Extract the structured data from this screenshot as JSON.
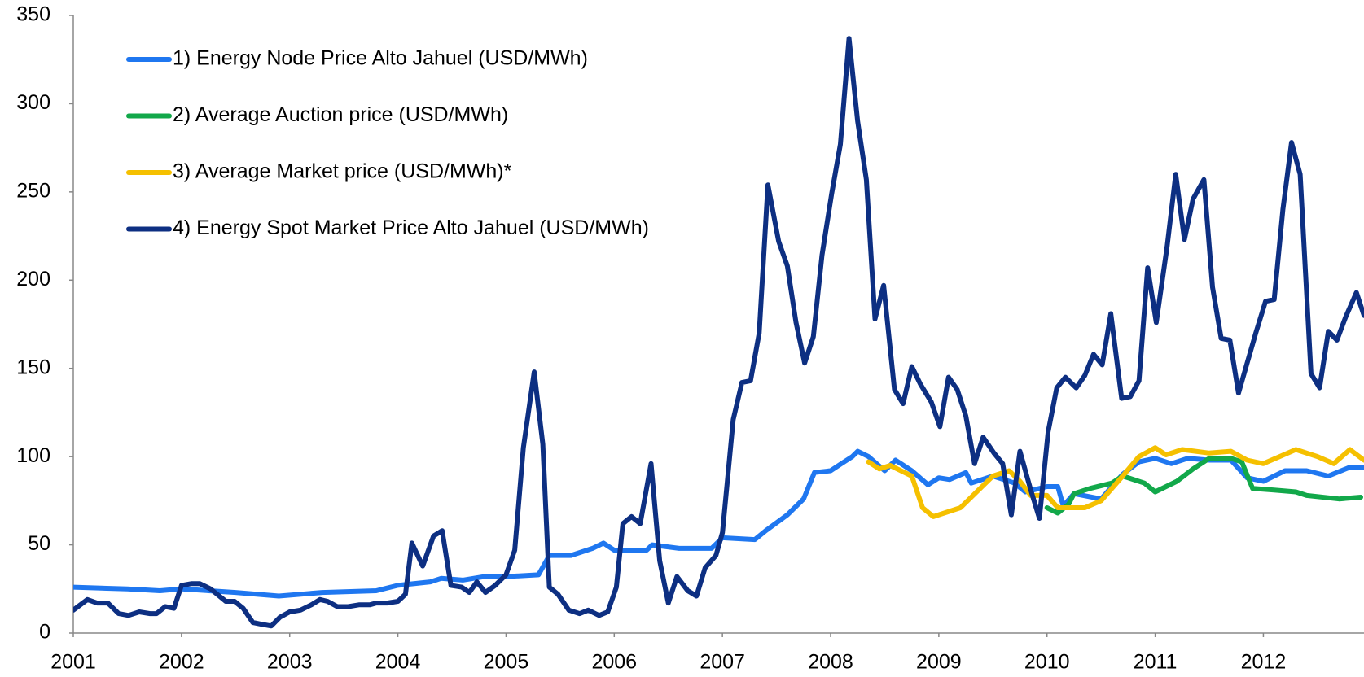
{
  "chart_data": {
    "type": "line",
    "xlim": [
      2001,
      2012.93
    ],
    "ylim": [
      0,
      350
    ],
    "xticks": [
      2001,
      2002,
      2003,
      2004,
      2005,
      2006,
      2007,
      2008,
      2009,
      2010,
      2011,
      2012
    ],
    "yticks": [
      0,
      50,
      100,
      150,
      200,
      250,
      300,
      350
    ],
    "legend": "upper left",
    "series": [
      {
        "name": "1) Energy Node Price Alto Jahuel (USD/MWh)",
        "color": "#1f77f0",
        "x": [
          2001,
          2001.5,
          2001.8,
          2002,
          2002.5,
          2002.9,
          2003.3,
          2003.8,
          2004,
          2004.3,
          2004.4,
          2004.6,
          2004.8,
          2005,
          2005.3,
          2005.4,
          2005.6,
          2005.8,
          2005.9,
          2006,
          2006.3,
          2006.35,
          2006.6,
          2006.9,
          2007,
          2007.3,
          2007.4,
          2007.6,
          2007.75,
          2007.85,
          2008,
          2008.1,
          2008.2,
          2008.25,
          2008.35,
          2008.5,
          2008.6,
          2008.75,
          2008.9,
          2009,
          2009.1,
          2009.25,
          2009.3,
          2009.5,
          2009.7,
          2009.8,
          2010,
          2010.1,
          2010.15,
          2010.25,
          2010.5,
          2010.7,
          2010.85,
          2011,
          2011.15,
          2011.3,
          2011.5,
          2011.7,
          2011.85,
          2012,
          2012.2,
          2012.4,
          2012.6,
          2012.8,
          2012.93
        ],
        "values": [
          26,
          25,
          24,
          25,
          23,
          21,
          23,
          24,
          27,
          29,
          31,
          30,
          32,
          32,
          33,
          44,
          44,
          48,
          51,
          47,
          47,
          50,
          48,
          48,
          54,
          53,
          58,
          67,
          76,
          91,
          92,
          96,
          100,
          103,
          100,
          92,
          98,
          92,
          84,
          88,
          87,
          91,
          85,
          89,
          85,
          80,
          83,
          83,
          72,
          79,
          76,
          90,
          97,
          99,
          96,
          99,
          98,
          98,
          88,
          86,
          92,
          92,
          89,
          94,
          94
        ]
      },
      {
        "name": "2) Average Auction price (USD/MWh)",
        "color": "#12a84a",
        "x": [
          2010,
          2010.1,
          2010.2,
          2010.25,
          2010.4,
          2010.6,
          2010.7,
          2010.9,
          2011,
          2011.2,
          2011.35,
          2011.5,
          2011.7,
          2011.8,
          2011.9,
          2012.1,
          2012.3,
          2012.4,
          2012.7,
          2012.9
        ],
        "values": [
          71,
          68,
          73,
          79,
          82,
          85,
          89,
          85,
          80,
          86,
          93,
          99,
          99,
          97,
          82,
          81,
          80,
          78,
          76,
          77
        ]
      },
      {
        "name": "3) Average Market price (USD/MWh)*",
        "color": "#f5c000",
        "x": [
          2008.35,
          2008.45,
          2008.55,
          2008.75,
          2008.85,
          2008.95,
          2009.2,
          2009.4,
          2009.5,
          2009.65,
          2009.75,
          2009.85,
          2010,
          2010.1,
          2010.35,
          2010.5,
          2010.7,
          2010.85,
          2011,
          2011.1,
          2011.25,
          2011.5,
          2011.7,
          2011.85,
          2012,
          2012.15,
          2012.3,
          2012.5,
          2012.65,
          2012.8,
          2012.93
        ],
        "values": [
          97,
          93,
          95,
          89,
          71,
          66,
          71,
          83,
          89,
          92,
          86,
          78,
          78,
          71,
          71,
          75,
          89,
          100,
          105,
          101,
          104,
          102,
          103,
          98,
          96,
          100,
          104,
          100,
          96,
          104,
          98
        ]
      },
      {
        "name": "4) Energy Spot Market Price Alto Jahuel (USD/MWh)",
        "color": "#0d2f82",
        "x": [
          2001,
          2001.13,
          2001.22,
          2001.32,
          2001.42,
          2001.51,
          2001.61,
          2001.71,
          2001.77,
          2001.85,
          2001.93,
          2002,
          2002.09,
          2002.17,
          2002.27,
          2002.33,
          2002.41,
          2002.49,
          2002.57,
          2002.66,
          2002.74,
          2002.83,
          2002.91,
          2003,
          2003.1,
          2003.2,
          2003.28,
          2003.35,
          2003.44,
          2003.54,
          2003.64,
          2003.74,
          2003.8,
          2003.9,
          2004,
          2004.07,
          2004.13,
          2004.23,
          2004.33,
          2004.41,
          2004.49,
          2004.59,
          2004.66,
          2004.73,
          2004.81,
          2004.9,
          2005,
          2005.08,
          2005.16,
          2005.26,
          2005.34,
          2005.4,
          2005.48,
          2005.58,
          2005.68,
          2005.76,
          2005.86,
          2005.94,
          2006.02,
          2006.08,
          2006.16,
          2006.24,
          2006.34,
          2006.42,
          2006.5,
          2006.58,
          2006.68,
          2006.76,
          2006.84,
          2006.94,
          2007,
          2007.1,
          2007.18,
          2007.26,
          2007.34,
          2007.42,
          2007.52,
          2007.6,
          2007.68,
          2007.76,
          2007.84,
          2007.92,
          2008.01,
          2008.09,
          2008.17,
          2008.25,
          2008.33,
          2008.41,
          2008.49,
          2008.59,
          2008.67,
          2008.75,
          2008.83,
          2008.93,
          2009.01,
          2009.09,
          2009.17,
          2009.25,
          2009.33,
          2009.41,
          2009.51,
          2009.59,
          2009.67,
          2009.75,
          2009.85,
          2009.93,
          2010.01,
          2010.09,
          2010.17,
          2010.27,
          2010.35,
          2010.43,
          2010.51,
          2010.59,
          2010.69,
          2010.77,
          2010.85,
          2010.93,
          2011.01,
          2011.11,
          2011.19,
          2011.27,
          2011.35,
          2011.45,
          2011.53,
          2011.61,
          2011.69,
          2011.77,
          2011.85,
          2011.93,
          2012.02,
          2012.1,
          2012.18,
          2012.26,
          2012.34,
          2012.44,
          2012.52,
          2012.6,
          2012.68,
          2012.76,
          2012.86,
          2012.93
        ],
        "values": [
          13,
          19,
          17,
          17,
          11,
          10,
          12,
          11,
          11,
          15,
          14,
          27,
          28,
          28,
          25,
          22,
          18,
          18,
          14,
          6,
          5,
          4,
          9,
          12,
          13,
          16,
          19,
          18,
          15,
          15,
          16,
          16,
          17,
          17,
          18,
          22,
          51,
          38,
          55,
          58,
          27,
          26,
          23,
          29,
          23,
          27,
          33,
          47,
          105,
          148,
          107,
          26,
          22,
          13,
          11,
          13,
          10,
          12,
          26,
          62,
          66,
          62,
          96,
          41,
          17,
          32,
          24,
          21,
          37,
          44,
          57,
          121,
          142,
          143,
          170,
          254,
          222,
          208,
          176,
          153,
          168,
          214,
          249,
          277,
          337,
          290,
          257,
          178,
          197,
          138,
          130,
          151,
          141,
          131,
          117,
          145,
          138,
          123,
          96,
          111,
          102,
          96,
          67,
          103,
          81,
          65,
          114,
          139,
          145,
          139,
          146,
          158,
          152,
          181,
          133,
          134,
          143,
          207,
          176,
          219,
          260,
          223,
          246,
          257,
          196,
          167,
          166,
          136,
          153,
          170,
          188,
          189,
          240,
          278,
          260,
          147,
          139,
          171,
          166,
          179,
          193,
          180
        ]
      }
    ]
  }
}
